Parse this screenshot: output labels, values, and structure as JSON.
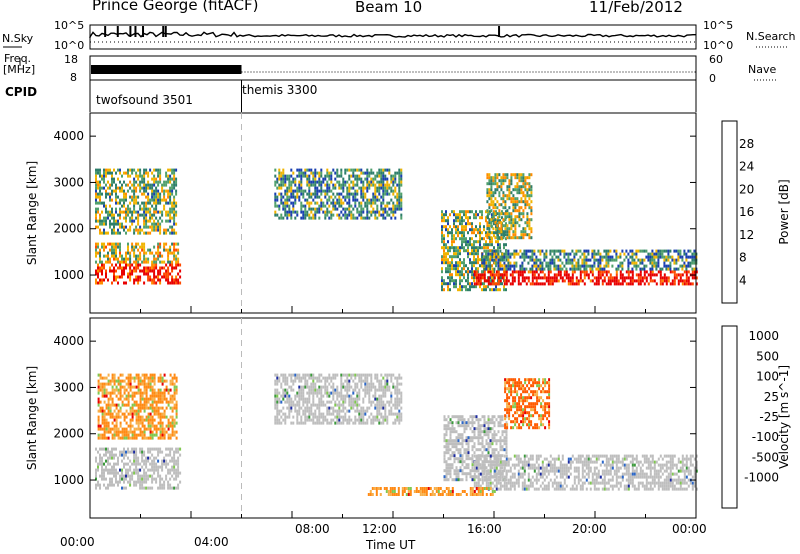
{
  "header": {
    "site": "Prince George (fitACF)",
    "beam": "Beam 10",
    "date": "11/Feb/2012"
  },
  "panel_labels": {
    "nsky": "N.Sky",
    "nsearch": "N.Search",
    "freq": "Freq.",
    "freq_unit": "[MHz]",
    "nave": "Nave",
    "cpid": "CPID"
  },
  "cpid_entries": [
    {
      "name": "twofsound 3501",
      "start_hour": 0,
      "end_hour": 6
    },
    {
      "name": "themis 3300",
      "start_hour": 6,
      "end_hour": 24
    }
  ],
  "colors": {
    "power_scale": [
      "#1010d8",
      "#1a3fb0",
      "#2e7e6a",
      "#50a06c",
      "#f0b400",
      "#ff8c00",
      "#ff4a00",
      "#e80000"
    ],
    "velocity_scale": [
      "#1c2aa0",
      "#2a66c8",
      "#3b9a3b",
      "#80c850",
      "#c8c8c0",
      "#f7b04a",
      "#ff8a14",
      "#ff5a00",
      "#e80000"
    ],
    "ground_scatter": "#bebebe"
  },
  "chart_data": [
    {
      "type": "line",
      "title": "N.Sky / N.Search",
      "yticks": [
        "10^5",
        "10^0"
      ],
      "yticks_right": [
        "10^5",
        "10^0"
      ],
      "xlim": [
        0,
        24
      ],
      "series": [
        {
          "name": "N.Sky",
          "style": "solid"
        },
        {
          "name": "N.Search",
          "style": "dotted"
        }
      ]
    },
    {
      "type": "line",
      "title": "Freq. / Nave",
      "yticks": [
        "18",
        "8"
      ],
      "yticks_right": [
        "60",
        "0"
      ],
      "xlim": [
        0,
        24
      ],
      "series": [
        {
          "name": "Freq. [MHz]",
          "style": "solid"
        },
        {
          "name": "Nave",
          "style": "dotted"
        }
      ]
    },
    {
      "type": "heatmap",
      "ylabel": "Slant Range [km]",
      "xlabel": "",
      "ylim": [
        180,
        4500
      ],
      "xlim": [
        0,
        24
      ],
      "yticks": [
        1000,
        2000,
        3000,
        4000
      ],
      "colorbar_label": "Power [dB]",
      "colorbar_ticks": [
        4,
        8,
        12,
        16,
        20,
        24,
        28
      ],
      "colorbar_range": [
        0,
        32
      ],
      "regions": [
        {
          "x": [
            0.2,
            3.6
          ],
          "y": [
            850,
            1250
          ],
          "level": 0.9
        },
        {
          "x": [
            0.2,
            3.5
          ],
          "y": [
            1250,
            1700
          ],
          "level": 0.55
        },
        {
          "x": [
            0.2,
            3.4
          ],
          "y": [
            1900,
            3300
          ],
          "level": 0.45
        },
        {
          "x": [
            7.3,
            12.3
          ],
          "y": [
            2200,
            3300
          ],
          "level": 0.35
        },
        {
          "x": [
            13.9,
            16.5
          ],
          "y": [
            700,
            2400
          ],
          "level": 0.45
        },
        {
          "x": [
            15.2,
            24.0
          ],
          "y": [
            800,
            1100
          ],
          "level": 0.95
        },
        {
          "x": [
            15.5,
            24.0
          ],
          "y": [
            1100,
            1550
          ],
          "level": 0.35
        },
        {
          "x": [
            15.7,
            17.5
          ],
          "y": [
            1800,
            3200
          ],
          "level": 0.5
        }
      ]
    },
    {
      "type": "heatmap",
      "ylabel": "Slant Range [km]",
      "xlabel": "Time UT",
      "ylim": [
        180,
        4500
      ],
      "xlim": [
        0,
        24
      ],
      "yticks": [
        1000,
        2000,
        3000,
        4000
      ],
      "xticks": [
        "00:00",
        "04:00",
        "08:00",
        "12:00",
        "16:00",
        "20:00",
        "00:00"
      ],
      "colorbar_label": "Velocity [m s^-1]",
      "colorbar_ticks": [
        1000,
        500,
        100,
        25,
        -25,
        -100,
        -500,
        -1000
      ],
      "regions": [
        {
          "x": [
            0.2,
            3.6
          ],
          "y": [
            850,
            1700
          ],
          "value": "ground scatter"
        },
        {
          "x": [
            0.3,
            3.4
          ],
          "y": [
            1900,
            3300
          ],
          "value": -300
        },
        {
          "x": [
            7.3,
            12.3
          ],
          "y": [
            2200,
            3300
          ],
          "value": "ground scatter"
        },
        {
          "x": [
            14.0,
            16.5
          ],
          "y": [
            1000,
            2400
          ],
          "value": "ground scatter"
        },
        {
          "x": [
            15.2,
            24.0
          ],
          "y": [
            800,
            1550
          ],
          "value": "ground scatter"
        },
        {
          "x": [
            16.4,
            18.2
          ],
          "y": [
            2100,
            3200
          ],
          "value": -400
        },
        {
          "x": [
            11.0,
            16.0
          ],
          "y": [
            700,
            850
          ],
          "value": -200
        }
      ]
    }
  ]
}
